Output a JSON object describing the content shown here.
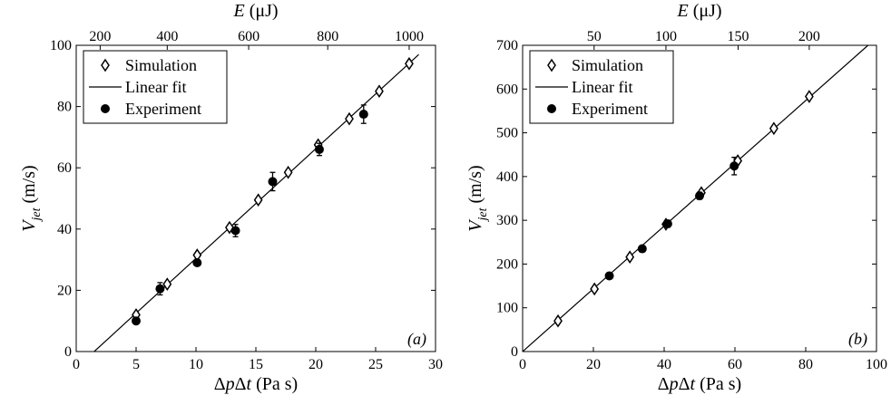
{
  "chart_data": [
    {
      "type": "scatter",
      "panel_tag": "(a)",
      "xlabel": "Δp Δt (Pa s)",
      "ylabel": "V jet (m/s)",
      "top_xlabel": "E (μJ)",
      "xlim": [
        0,
        30
      ],
      "ylim": [
        0,
        100
      ],
      "xticks": [
        0,
        5,
        10,
        15,
        20,
        25,
        30
      ],
      "yticks": [
        0,
        20,
        40,
        60,
        80,
        100
      ],
      "top_ticks": [
        {
          "label": "200",
          "x": 2.0
        },
        {
          "label": "400",
          "x": 7.6
        },
        {
          "label": "600",
          "x": 14.4
        },
        {
          "label": "800",
          "x": 21.0
        },
        {
          "label": "1000",
          "x": 27.8
        }
      ],
      "legend": {
        "position": "top-left",
        "entries": [
          "Simulation",
          "Linear fit",
          "Experiment"
        ]
      },
      "series": [
        {
          "name": "Simulation",
          "marker": "diamond",
          "x": [
            5.0,
            7.6,
            10.1,
            12.8,
            15.2,
            17.7,
            20.2,
            22.8,
            25.3,
            27.8
          ],
          "y": [
            12.0,
            22.0,
            31.5,
            40.5,
            49.5,
            58.5,
            67.5,
            76.0,
            85.0,
            94.0
          ]
        },
        {
          "name": "Experiment",
          "marker": "circle",
          "x": [
            5.0,
            7.0,
            10.1,
            13.3,
            16.4,
            20.3,
            24.0
          ],
          "y": [
            10.0,
            20.5,
            29.0,
            39.5,
            55.5,
            66.0,
            77.5
          ],
          "err": [
            0,
            2.0,
            1.0,
            2.0,
            3.0,
            2.0,
            3.0
          ]
        },
        {
          "name": "Linear fit",
          "marker": "line",
          "x": [
            1.5,
            28.6
          ],
          "y": [
            0,
            97
          ]
        }
      ]
    },
    {
      "type": "scatter",
      "panel_tag": "(b)",
      "xlabel": "Δp Δt (Pa s)",
      "ylabel": "V jet (m/s)",
      "top_xlabel": "E (μJ)",
      "xlim": [
        0,
        100
      ],
      "ylim": [
        0,
        700
      ],
      "xticks": [
        0,
        20,
        40,
        60,
        80,
        100
      ],
      "yticks": [
        0,
        100,
        200,
        300,
        400,
        500,
        600,
        700
      ],
      "top_ticks": [
        {
          "label": "50",
          "x": 20.2
        },
        {
          "label": "100",
          "x": 40.5
        },
        {
          "label": "150",
          "x": 60.9
        },
        {
          "label": "200",
          "x": 81.0
        }
      ],
      "legend": {
        "position": "top-left",
        "entries": [
          "Simulation",
          "Linear fit",
          "Experiment"
        ]
      },
      "series": [
        {
          "name": "Simulation",
          "marker": "diamond",
          "x": [
            10,
            20.3,
            30.3,
            40.5,
            50.5,
            60.8,
            71.0,
            81.0
          ],
          "y": [
            70,
            143,
            216,
            291,
            363,
            436,
            510,
            583
          ]
        },
        {
          "name": "Experiment",
          "marker": "circle",
          "x": [
            24.5,
            33.8,
            41.0,
            50.0,
            59.8
          ],
          "y": [
            173,
            235,
            292,
            356,
            424
          ],
          "err": [
            0,
            0,
            8,
            8,
            20
          ]
        },
        {
          "name": "Linear fit",
          "marker": "line",
          "x": [
            0,
            97.6
          ],
          "y": [
            0,
            700
          ]
        }
      ]
    }
  ]
}
